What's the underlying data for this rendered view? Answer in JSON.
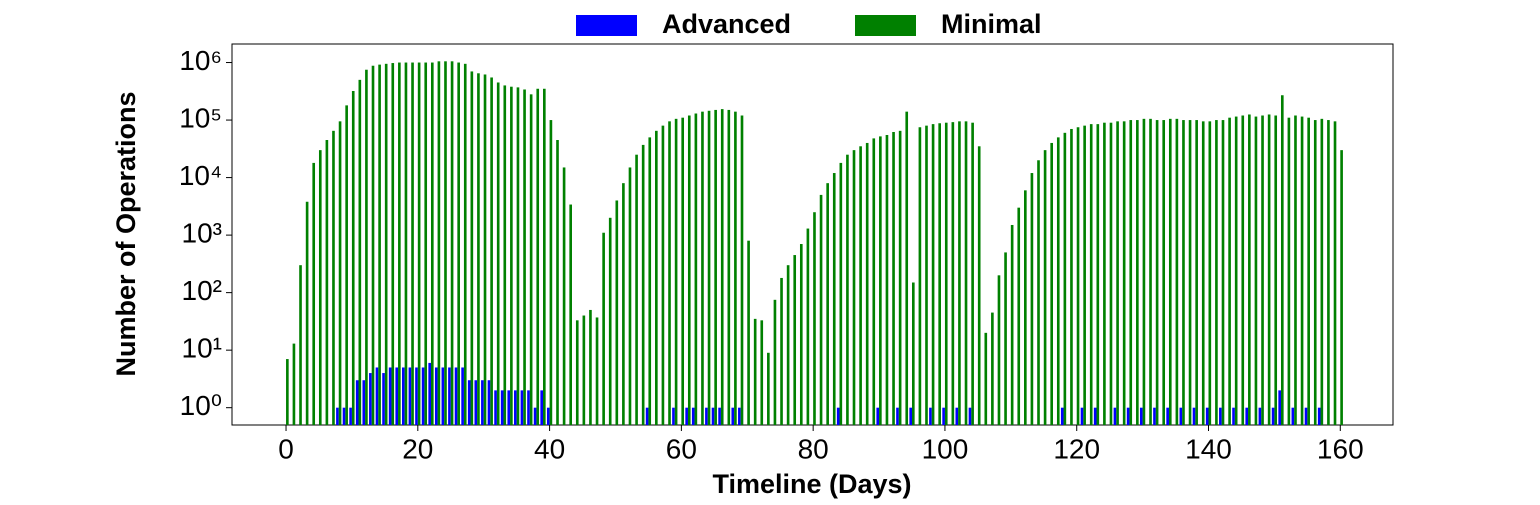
{
  "chart_data": {
    "type": "bar",
    "x_label": "Timeline (Days)",
    "y_label": "Number of Operations",
    "ylog": true,
    "legend": "upper center",
    "x": [
      0,
      1,
      2,
      3,
      4,
      5,
      6,
      7,
      8,
      9,
      10,
      11,
      12,
      13,
      14,
      15,
      16,
      17,
      18,
      19,
      20,
      21,
      22,
      23,
      24,
      25,
      26,
      27,
      28,
      29,
      30,
      31,
      32,
      33,
      34,
      35,
      36,
      37,
      38,
      39,
      40,
      41,
      42,
      43,
      44,
      45,
      46,
      47,
      48,
      49,
      50,
      51,
      52,
      53,
      54,
      55,
      56,
      57,
      58,
      59,
      60,
      61,
      62,
      63,
      64,
      65,
      66,
      67,
      68,
      69,
      70,
      71,
      72,
      73,
      74,
      75,
      76,
      77,
      78,
      79,
      80,
      81,
      82,
      83,
      84,
      85,
      86,
      87,
      88,
      89,
      90,
      91,
      92,
      93,
      94,
      95,
      96,
      97,
      98,
      99,
      100,
      101,
      102,
      103,
      104,
      105,
      106,
      107,
      108,
      109,
      110,
      111,
      112,
      113,
      114,
      115,
      116,
      117,
      118,
      119,
      120,
      121,
      122,
      123,
      124,
      125,
      126,
      127,
      128,
      129,
      130,
      131,
      132,
      133,
      134,
      135,
      136,
      137,
      138,
      139,
      140,
      141,
      142,
      143,
      144,
      145,
      146,
      147,
      148,
      149,
      150,
      151,
      152,
      153,
      154,
      155,
      156,
      157,
      158,
      159,
      160
    ],
    "series": [
      {
        "name": "Advanced",
        "color": "#0000ff",
        "values": [
          null,
          null,
          null,
          null,
          null,
          null,
          null,
          null,
          1,
          1,
          1,
          3,
          3,
          4,
          5,
          4,
          5,
          5,
          5,
          5,
          5,
          5,
          6,
          5,
          5,
          5,
          5,
          5,
          3,
          3,
          3,
          3,
          2,
          2,
          2,
          2,
          2,
          2,
          1,
          2,
          1,
          null,
          null,
          null,
          null,
          null,
          null,
          null,
          null,
          null,
          null,
          null,
          null,
          null,
          null,
          1,
          null,
          null,
          null,
          1,
          null,
          1,
          1,
          null,
          1,
          1,
          1,
          null,
          1,
          1,
          null,
          null,
          null,
          null,
          null,
          null,
          null,
          null,
          null,
          null,
          null,
          null,
          null,
          null,
          1,
          null,
          null,
          null,
          null,
          null,
          1,
          null,
          null,
          1,
          null,
          1,
          null,
          null,
          1,
          null,
          1,
          null,
          1,
          null,
          1,
          null,
          null,
          null,
          null,
          null,
          null,
          null,
          null,
          null,
          null,
          null,
          null,
          null,
          1,
          null,
          null,
          1,
          null,
          1,
          null,
          null,
          1,
          null,
          1,
          null,
          1,
          null,
          1,
          null,
          1,
          null,
          1,
          null,
          1,
          null,
          1,
          null,
          1,
          null,
          1,
          null,
          1,
          null,
          1,
          null,
          1,
          2,
          null,
          1,
          null,
          1,
          null,
          1,
          null,
          null,
          null
        ]
      },
      {
        "name": "Minimal",
        "color": "#008000",
        "values": [
          7,
          13,
          300,
          3800,
          18000,
          30000,
          45000,
          65000,
          95000,
          180000,
          320000,
          500000,
          750000,
          880000,
          920000,
          950000,
          980000,
          1000000,
          1000000,
          1000000,
          1000000,
          1000000,
          1000000,
          1050000,
          1050000,
          1050000,
          1000000,
          950000,
          700000,
          650000,
          620000,
          550000,
          450000,
          400000,
          380000,
          370000,
          340000,
          280000,
          350000,
          350000,
          100000,
          45000,
          15000,
          3400,
          33,
          40,
          50,
          37,
          1100,
          2000,
          4000,
          8000,
          15000,
          25000,
          37000,
          50000,
          65000,
          80000,
          95000,
          105000,
          110000,
          120000,
          130000,
          140000,
          145000,
          150000,
          155000,
          150000,
          140000,
          120000,
          800,
          35,
          33,
          9,
          75,
          180,
          300,
          450,
          700,
          1300,
          2500,
          5000,
          8000,
          12000,
          18000,
          25000,
          30000,
          35000,
          40000,
          48000,
          52000,
          55000,
          62000,
          65000,
          140000,
          150,
          75000,
          80000,
          85000,
          88000,
          90000,
          92000,
          95000,
          95000,
          90000,
          35000,
          20,
          45,
          200,
          500,
          1500,
          3000,
          6000,
          12000,
          20000,
          30000,
          40000,
          50000,
          60000,
          70000,
          75000,
          80000,
          85000,
          85000,
          90000,
          90000,
          95000,
          95000,
          100000,
          100000,
          105000,
          105000,
          100000,
          100000,
          105000,
          105000,
          100000,
          100000,
          100000,
          95000,
          95000,
          100000,
          100000,
          110000,
          115000,
          120000,
          125000,
          115000,
          120000,
          125000,
          120000,
          270000,
          110000,
          120000,
          115000,
          110000,
          100000,
          105000,
          100000,
          95000,
          30000
        ]
      }
    ],
    "xlim": [
      -8.2,
      168
    ],
    "xticks": [
      0,
      20,
      40,
      60,
      80,
      100,
      120,
      140,
      160
    ],
    "ylim": [
      0.5,
      2100000
    ],
    "yticks": [
      {
        "value": 1,
        "label": "10⁰"
      },
      {
        "value": 10,
        "label": "10¹"
      },
      {
        "value": 100,
        "label": "10²"
      },
      {
        "value": 1000,
        "label": "10³"
      },
      {
        "value": 10000,
        "label": "10⁴"
      },
      {
        "value": 100000,
        "label": "10⁵"
      },
      {
        "value": 1000000,
        "label": "10⁶"
      }
    ]
  }
}
